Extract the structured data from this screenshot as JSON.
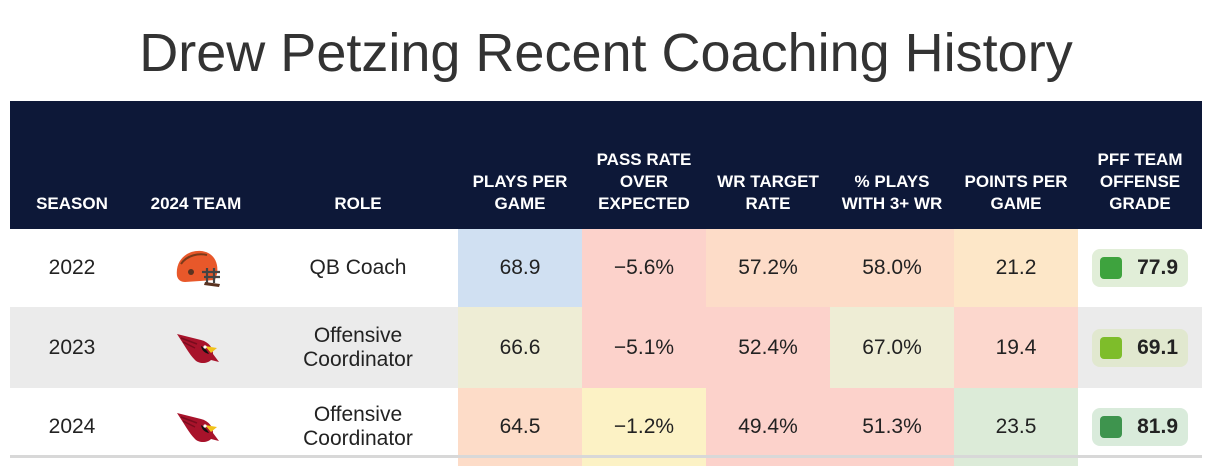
{
  "title": "Drew Petzing Recent Coaching History",
  "columns": {
    "season": "SEASON",
    "team": "2024 TEAM",
    "role": "ROLE",
    "plays": "PLAYS PER GAME",
    "proe": "PASS RATE OVER EXPECTED",
    "wr_target": "WR TARGET RATE",
    "plays3wr": "% PLAYS WITH 3+ WR",
    "ppg": "POINTS PER GAME",
    "grade": "PFF TEAM OFFENSE GRADE"
  },
  "rows": [
    {
      "season": "2022",
      "team_logo": "browns-helmet-icon",
      "role": "QB Coach",
      "plays": "68.9",
      "proe": "−5.6%",
      "wr_target": "57.2%",
      "plays3wr": "58.0%",
      "ppg": "21.2",
      "grade": "77.9",
      "colors": {
        "plays": "#d0e0f2",
        "proe": "#fcd2cb",
        "wr_target": "#fddcc8",
        "plays3wr": "#fddcc8",
        "ppg": "#fde7c8"
      },
      "grade_bg": "#e1eed8",
      "grade_swatch": "#3ea33e"
    },
    {
      "season": "2023",
      "team_logo": "cardinals-logo-icon",
      "role": "Offensive Coordinator",
      "plays": "66.6",
      "proe": "−5.1%",
      "wr_target": "52.4%",
      "plays3wr": "67.0%",
      "ppg": "19.4",
      "grade": "69.1",
      "colors": {
        "plays": "#eeedd5",
        "proe": "#fcd2cb",
        "wr_target": "#fcd2cb",
        "plays3wr": "#eeedd5",
        "ppg": "#fcd7cd"
      },
      "grade_bg": "#e1e8cf",
      "grade_swatch": "#7ebd2a"
    },
    {
      "season": "2024",
      "team_logo": "cardinals-logo-icon",
      "role": "Offensive Coordinator",
      "plays": "64.5",
      "proe": "−1.2%",
      "wr_target": "49.4%",
      "plays3wr": "51.3%",
      "ppg": "23.5",
      "grade": "81.9",
      "colors": {
        "plays": "#fddcc8",
        "proe": "#fcf2c5",
        "wr_target": "#fcd2cb",
        "plays3wr": "#fcd2cb",
        "ppg": "#dcebd8"
      },
      "grade_bg": "#d9ebdb",
      "grade_swatch": "#3e944e"
    }
  ],
  "chart_data": {
    "type": "table",
    "title": "Drew Petzing Recent Coaching History",
    "columns": [
      "SEASON",
      "2024 TEAM",
      "ROLE",
      "PLAYS PER GAME",
      "PASS RATE OVER EXPECTED",
      "WR TARGET RATE",
      "% PLAYS WITH 3+ WR",
      "POINTS PER GAME",
      "PFF TEAM OFFENSE GRADE"
    ],
    "rows": [
      [
        "2022",
        "Cleveland Browns",
        "QB Coach",
        68.9,
        -5.6,
        57.2,
        58.0,
        21.2,
        77.9
      ],
      [
        "2023",
        "Arizona Cardinals",
        "Offensive Coordinator",
        66.6,
        -5.1,
        52.4,
        67.0,
        19.4,
        69.1
      ],
      [
        "2024",
        "Arizona Cardinals",
        "Offensive Coordinator",
        64.5,
        -1.2,
        49.4,
        51.3,
        23.5,
        81.9
      ]
    ]
  }
}
